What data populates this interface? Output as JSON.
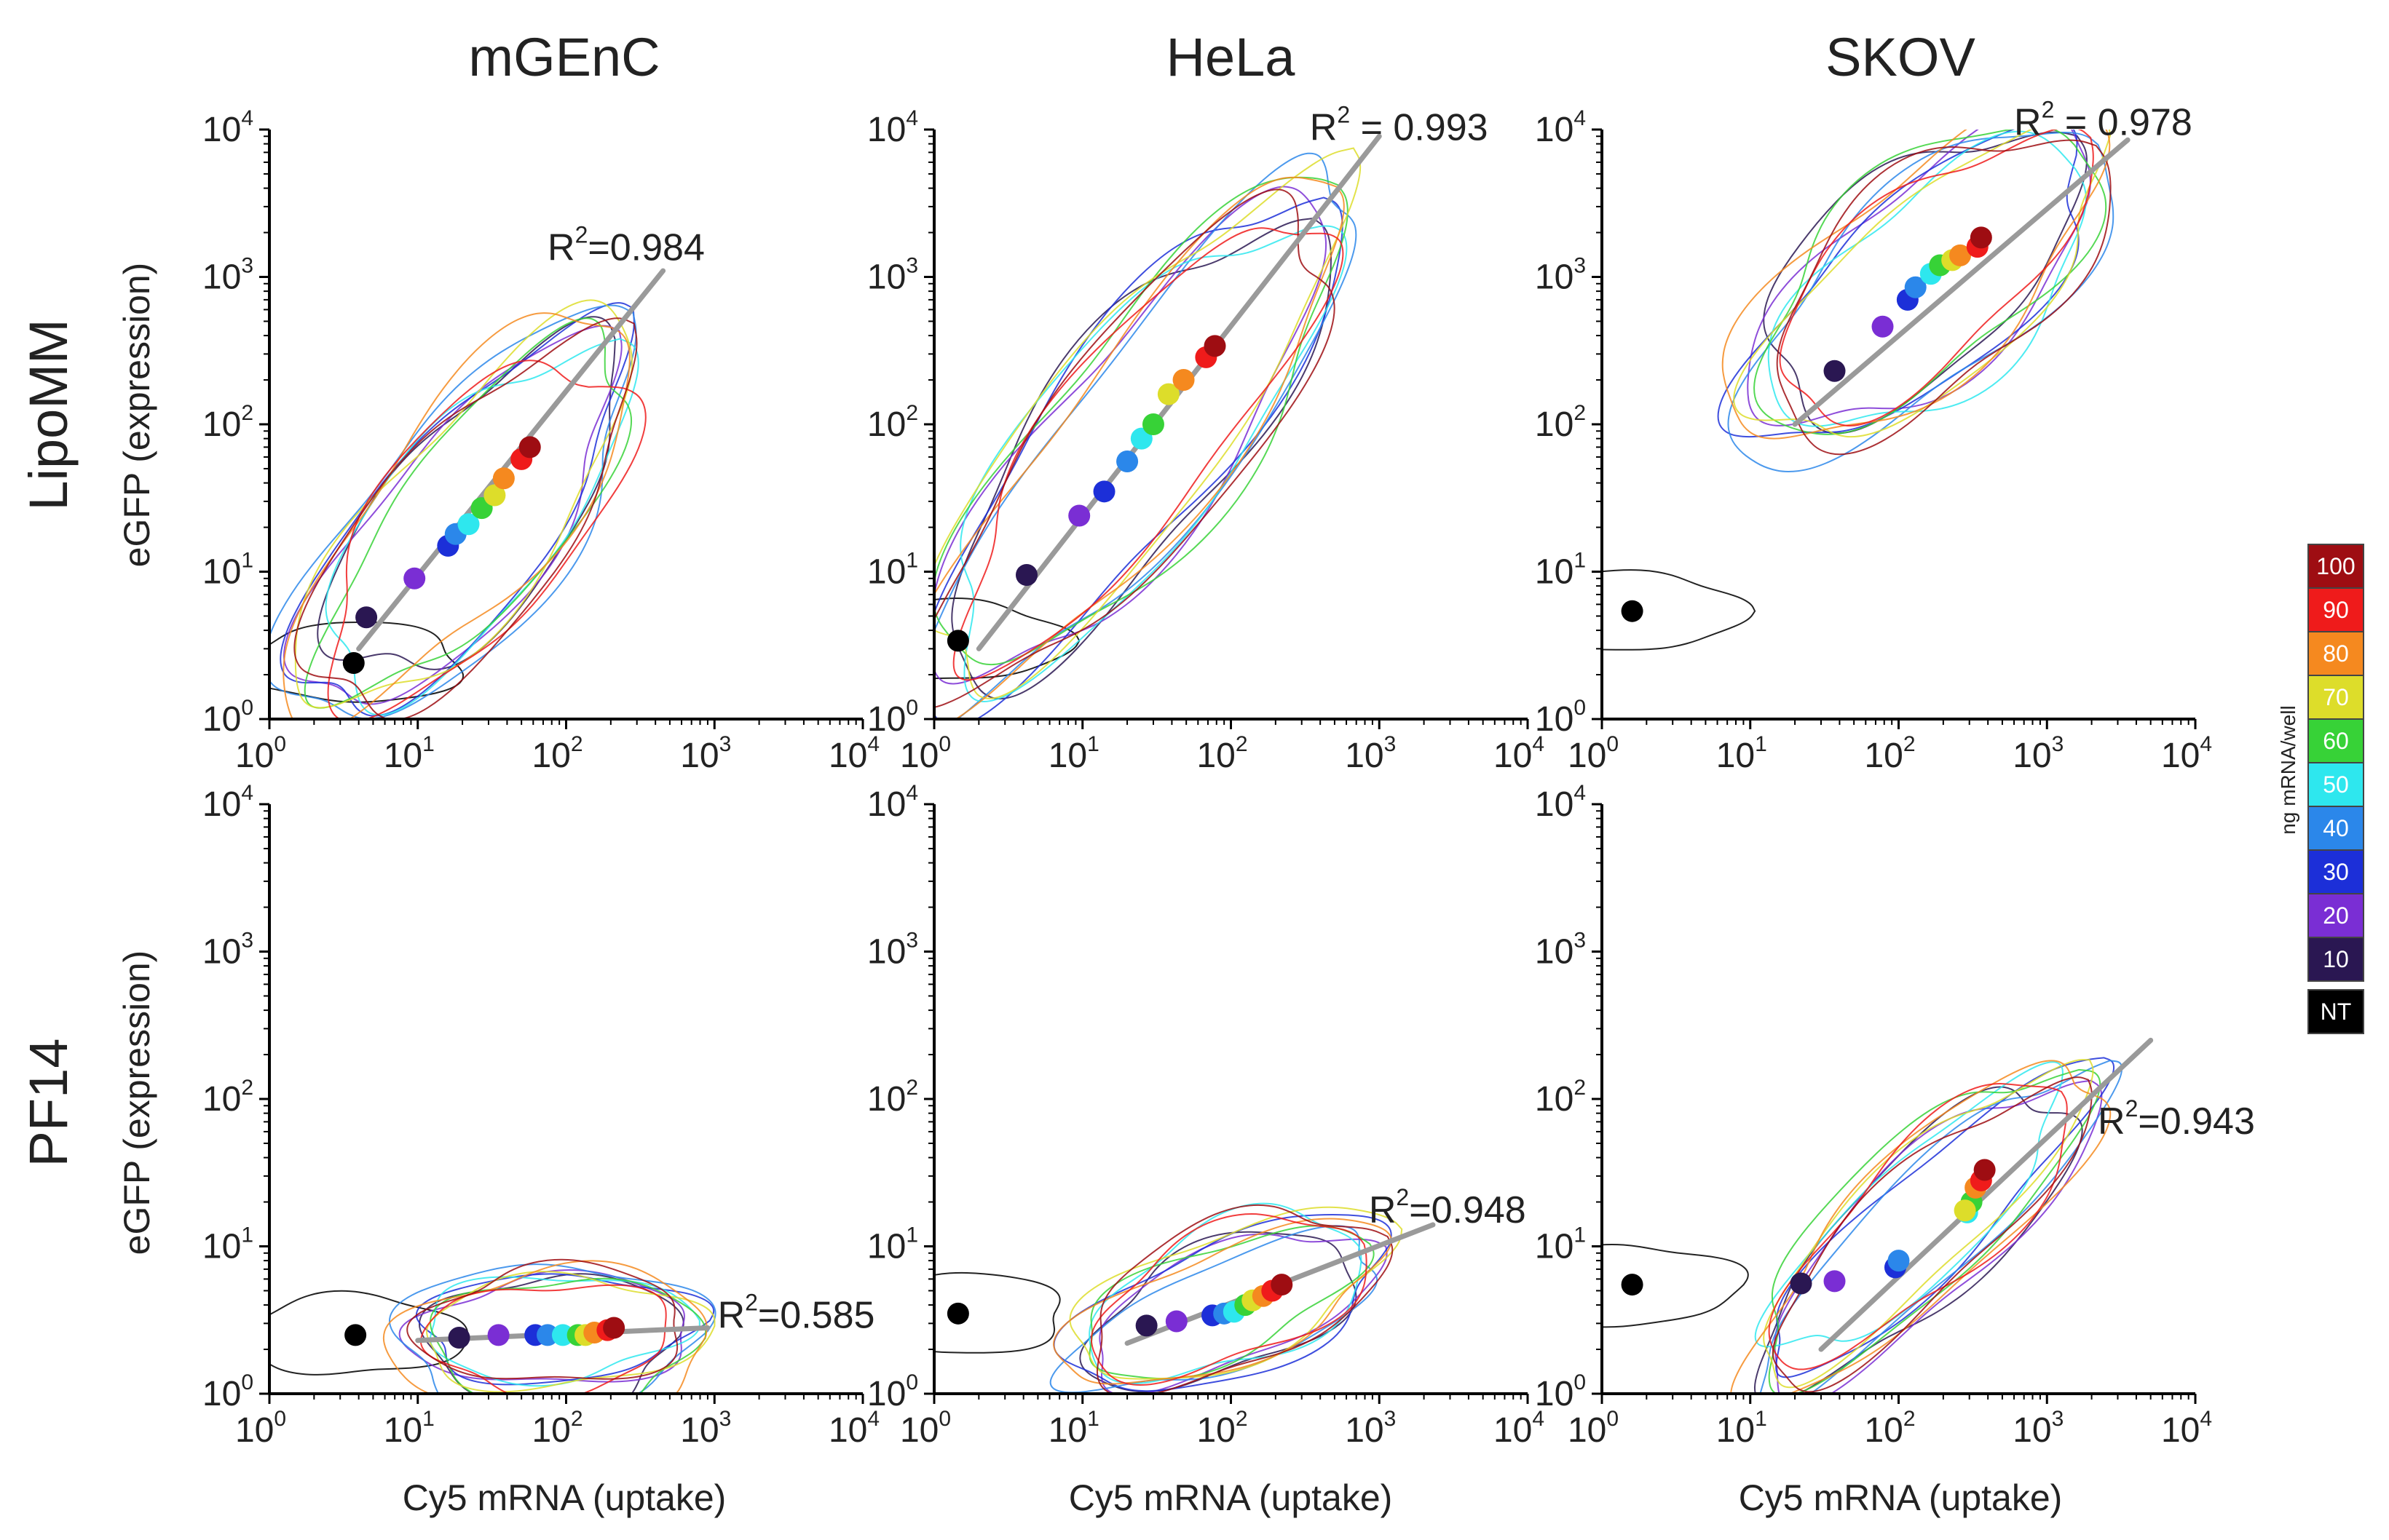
{
  "figure": {
    "column_titles": [
      "mGEnC",
      "HeLa",
      "SKOV"
    ],
    "row_titles": [
      "LipoMM",
      "PF14"
    ],
    "y_axis_label": "eGFP (expression)",
    "x_axis_label": "Cy5 mRNA (uptake)",
    "tick_base": "10",
    "tick_exponents": [
      "0",
      "1",
      "2",
      "3",
      "4"
    ],
    "r2_prefix": "R",
    "r2_superscript": "2",
    "axis_color": "#000000",
    "fit_line_color": "#9a9a9a"
  },
  "legend": {
    "title": "ng mRNA/well",
    "items": [
      {
        "label": "100",
        "color": "#9e0d12"
      },
      {
        "label": "90",
        "color": "#ef1b1b"
      },
      {
        "label": "80",
        "color": "#f5891f"
      },
      {
        "label": "70",
        "color": "#dddd2a"
      },
      {
        "label": "60",
        "color": "#37d237"
      },
      {
        "label": "50",
        "color": "#2ee7ee"
      },
      {
        "label": "40",
        "color": "#2b87ea"
      },
      {
        "label": "30",
        "color": "#1c2fd8"
      },
      {
        "label": "20",
        "color": "#7a2ed4"
      },
      {
        "label": "10",
        "color": "#2a1752"
      },
      {
        "label": "NT",
        "color": "#000000"
      }
    ]
  },
  "chart_data": [
    {
      "type": "scatter",
      "title": "mGEnC",
      "row": "LipoMM",
      "xscale": "log",
      "yscale": "log",
      "xlim": [
        1,
        10000
      ],
      "ylim": [
        1,
        10000
      ],
      "xlabel": "Cy5 mRNA (uptake)",
      "ylabel": "eGFP (expression)",
      "r2_value": "0.984",
      "r2_spaced": false,
      "fit_line": {
        "x": [
          4,
          450
        ],
        "y": [
          3,
          1100
        ]
      },
      "r2_anchor": {
        "x": 75,
        "y": 1300
      },
      "points": [
        {
          "dose": "NT",
          "x": 3.7,
          "y": 2.4
        },
        {
          "dose": "10",
          "x": 4.5,
          "y": 4.9
        },
        {
          "dose": "20",
          "x": 9.5,
          "y": 9.0
        },
        {
          "dose": "30",
          "x": 16,
          "y": 15
        },
        {
          "dose": "40",
          "x": 18,
          "y": 18
        },
        {
          "dose": "50",
          "x": 22,
          "y": 21
        },
        {
          "dose": "60",
          "x": 27,
          "y": 27
        },
        {
          "dose": "70",
          "x": 33,
          "y": 33
        },
        {
          "dose": "80",
          "x": 38,
          "y": 43
        },
        {
          "dose": "90",
          "x": 50,
          "y": 58
        },
        {
          "dose": "100",
          "x": 57,
          "y": 70
        }
      ]
    },
    {
      "type": "scatter",
      "title": "HeLa",
      "row": "LipoMM",
      "xscale": "log",
      "yscale": "log",
      "xlim": [
        1,
        10000
      ],
      "ylim": [
        1,
        10000
      ],
      "xlabel": "Cy5 mRNA (uptake)",
      "ylabel": "eGFP (expression)",
      "r2_value": "0.993",
      "r2_spaced": true,
      "fit_line": {
        "x": [
          2,
          1000
        ],
        "y": [
          3,
          9000
        ]
      },
      "r2_anchor": {
        "x": 340,
        "y": 8500
      },
      "points": [
        {
          "dose": "NT",
          "x": 1.45,
          "y": 3.4
        },
        {
          "dose": "10",
          "x": 4.2,
          "y": 9.5
        },
        {
          "dose": "20",
          "x": 9.5,
          "y": 24
        },
        {
          "dose": "30",
          "x": 14,
          "y": 35
        },
        {
          "dose": "40",
          "x": 20,
          "y": 56
        },
        {
          "dose": "50",
          "x": 25,
          "y": 80
        },
        {
          "dose": "60",
          "x": 30,
          "y": 100
        },
        {
          "dose": "70",
          "x": 38,
          "y": 160
        },
        {
          "dose": "80",
          "x": 48,
          "y": 200
        },
        {
          "dose": "90",
          "x": 68,
          "y": 285
        },
        {
          "dose": "100",
          "x": 78,
          "y": 340
        }
      ]
    },
    {
      "type": "scatter",
      "title": "SKOV",
      "row": "LipoMM",
      "xscale": "log",
      "yscale": "log",
      "xlim": [
        1,
        10000
      ],
      "ylim": [
        1,
        10000
      ],
      "xlabel": "Cy5 mRNA (uptake)",
      "ylabel": "eGFP (expression)",
      "r2_value": "0.978",
      "r2_spaced": true,
      "fit_line": {
        "x": [
          20,
          3500
        ],
        "y": [
          100,
          8500
        ]
      },
      "r2_anchor": {
        "x": 600,
        "y": 9200
      },
      "points": [
        {
          "dose": "NT",
          "x": 1.6,
          "y": 5.4
        },
        {
          "dose": "10",
          "x": 37,
          "y": 230
        },
        {
          "dose": "20",
          "x": 78,
          "y": 460
        },
        {
          "dose": "30",
          "x": 115,
          "y": 700
        },
        {
          "dose": "40",
          "x": 130,
          "y": 850
        },
        {
          "dose": "50",
          "x": 165,
          "y": 1050
        },
        {
          "dose": "60",
          "x": 190,
          "y": 1200
        },
        {
          "dose": "70",
          "x": 230,
          "y": 1300
        },
        {
          "dose": "80",
          "x": 260,
          "y": 1400
        },
        {
          "dose": "90",
          "x": 340,
          "y": 1600
        },
        {
          "dose": "100",
          "x": 360,
          "y": 1850
        }
      ]
    },
    {
      "type": "scatter",
      "title": "mGEnC",
      "row": "PF14",
      "xscale": "log",
      "yscale": "log",
      "xlim": [
        1,
        10000
      ],
      "ylim": [
        1,
        10000
      ],
      "xlabel": "Cy5 mRNA (uptake)",
      "ylabel": "eGFP (expression)",
      "r2_value": "0.585",
      "r2_spaced": false,
      "fit_line": {
        "x": [
          10,
          900
        ],
        "y": [
          2.3,
          2.8
        ]
      },
      "r2_anchor": {
        "x": 1050,
        "y": 2.8
      },
      "points": [
        {
          "dose": "NT",
          "x": 3.8,
          "y": 2.5
        },
        {
          "dose": "10",
          "x": 19,
          "y": 2.4
        },
        {
          "dose": "20",
          "x": 35,
          "y": 2.5
        },
        {
          "dose": "30",
          "x": 62,
          "y": 2.5
        },
        {
          "dose": "40",
          "x": 75,
          "y": 2.5
        },
        {
          "dose": "50",
          "x": 95,
          "y": 2.5
        },
        {
          "dose": "60",
          "x": 120,
          "y": 2.5
        },
        {
          "dose": "70",
          "x": 135,
          "y": 2.5
        },
        {
          "dose": "80",
          "x": 155,
          "y": 2.6
        },
        {
          "dose": "90",
          "x": 190,
          "y": 2.7
        },
        {
          "dose": "100",
          "x": 210,
          "y": 2.8
        }
      ]
    },
    {
      "type": "scatter",
      "title": "HeLa",
      "row": "PF14",
      "xscale": "log",
      "yscale": "log",
      "xlim": [
        1,
        10000
      ],
      "ylim": [
        1,
        10000
      ],
      "xlabel": "Cy5 mRNA (uptake)",
      "ylabel": "eGFP (expression)",
      "r2_value": "0.948",
      "r2_spaced": false,
      "fit_line": {
        "x": [
          20,
          2300
        ],
        "y": [
          2.2,
          14
        ]
      },
      "r2_anchor": {
        "x": 850,
        "y": 14.5
      },
      "points": [
        {
          "dose": "NT",
          "x": 1.45,
          "y": 3.5
        },
        {
          "dose": "10",
          "x": 27,
          "y": 2.9
        },
        {
          "dose": "20",
          "x": 43,
          "y": 3.1
        },
        {
          "dose": "30",
          "x": 75,
          "y": 3.4
        },
        {
          "dose": "40",
          "x": 90,
          "y": 3.5
        },
        {
          "dose": "50",
          "x": 105,
          "y": 3.6
        },
        {
          "dose": "60",
          "x": 125,
          "y": 4.0
        },
        {
          "dose": "70",
          "x": 140,
          "y": 4.3
        },
        {
          "dose": "80",
          "x": 165,
          "y": 4.6
        },
        {
          "dose": "90",
          "x": 190,
          "y": 5.0
        },
        {
          "dose": "100",
          "x": 220,
          "y": 5.5
        }
      ]
    },
    {
      "type": "scatter",
      "title": "SKOV",
      "row": "PF14",
      "xscale": "log",
      "yscale": "log",
      "xlim": [
        1,
        10000
      ],
      "ylim": [
        1,
        10000
      ],
      "xlabel": "Cy5 mRNA (uptake)",
      "ylabel": "eGFP (expression)",
      "r2_value": "0.943",
      "r2_spaced": false,
      "fit_line": {
        "x": [
          30,
          5000
        ],
        "y": [
          2,
          250
        ]
      },
      "r2_anchor": {
        "x": 2200,
        "y": 58
      },
      "points": [
        {
          "dose": "NT",
          "x": 1.6,
          "y": 5.5
        },
        {
          "dose": "10",
          "x": 22,
          "y": 5.6
        },
        {
          "dose": "20",
          "x": 37,
          "y": 5.8
        },
        {
          "dose": "30",
          "x": 95,
          "y": 7.2
        },
        {
          "dose": "40",
          "x": 100,
          "y": 8.0
        },
        {
          "dose": "50",
          "x": 290,
          "y": 17
        },
        {
          "dose": "60",
          "x": 310,
          "y": 20
        },
        {
          "dose": "70",
          "x": 280,
          "y": 17.5
        },
        {
          "dose": "80",
          "x": 330,
          "y": 25
        },
        {
          "dose": "90",
          "x": 360,
          "y": 28
        },
        {
          "dose": "100",
          "x": 380,
          "y": 33
        }
      ]
    }
  ]
}
